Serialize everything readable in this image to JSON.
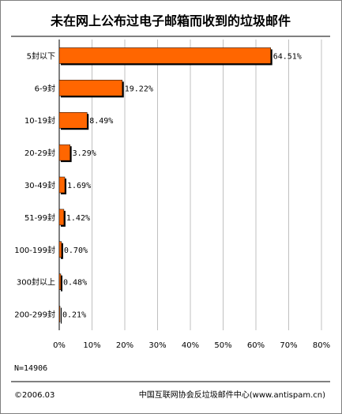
{
  "chart_data": {
    "type": "bar",
    "orientation": "horizontal",
    "title": "未在网上公布过电子邮箱而收到的垃圾邮件",
    "categories": [
      "5封以下",
      "6-9封",
      "10-19封",
      "20-29封",
      "30-49封",
      "51-99封",
      "100-199封",
      "300封以上",
      "200-299封"
    ],
    "values": [
      64.51,
      19.22,
      8.49,
      3.29,
      1.69,
      1.42,
      0.7,
      0.48,
      0.21
    ],
    "value_labels": [
      "64.51%",
      "19.22%",
      "8.49%",
      "3.29%",
      "1.69%",
      "1.42%",
      "0.70%",
      "0.48%",
      "0.21%"
    ],
    "xlim": [
      0,
      80
    ],
    "xticks": [
      "0%",
      "10%",
      "20%",
      "30%",
      "40%",
      "50%",
      "60%",
      "70%",
      "80%"
    ],
    "grid": true,
    "bar_color": "#ff6600",
    "shadow_color": "#000000"
  },
  "footer": {
    "sample": "N=14906",
    "date": "©2006.03",
    "source": "中国互联网协会反垃圾邮件中心(www.antispam.cn)"
  }
}
